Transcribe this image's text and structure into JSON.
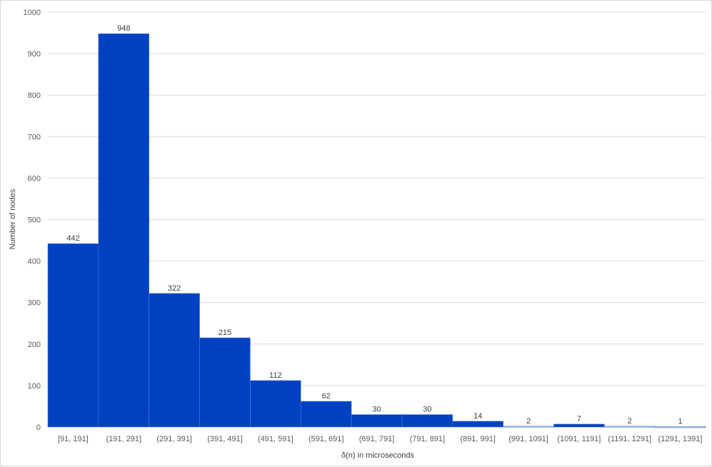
{
  "chart_data": {
    "type": "bar",
    "title": "",
    "xlabel": "δ(n) in microseconds",
    "ylabel": "Number of nodes",
    "categories": [
      "[91, 191]",
      "(191, 291]",
      "(291, 391]",
      "(391, 491]",
      "(491, 591]",
      "(591, 691]",
      "(691, 791]",
      "(791, 891]",
      "(891, 991]",
      "(991, 1091]",
      "(1091, 1191]",
      "(1191, 1291]",
      "(1291, 1391]"
    ],
    "values": [
      442,
      948,
      322,
      215,
      112,
      62,
      30,
      30,
      14,
      2,
      7,
      2,
      1
    ],
    "ylim": [
      0,
      1000
    ],
    "yticks": [
      0,
      100,
      200,
      300,
      400,
      500,
      600,
      700,
      800,
      900,
      1000
    ],
    "grid": true,
    "legend": "none",
    "colors": {
      "bar": "#0041C2",
      "bar_light": "#b4c7e7",
      "grid": "#d9d9d9",
      "axis_text": "#595959"
    }
  }
}
